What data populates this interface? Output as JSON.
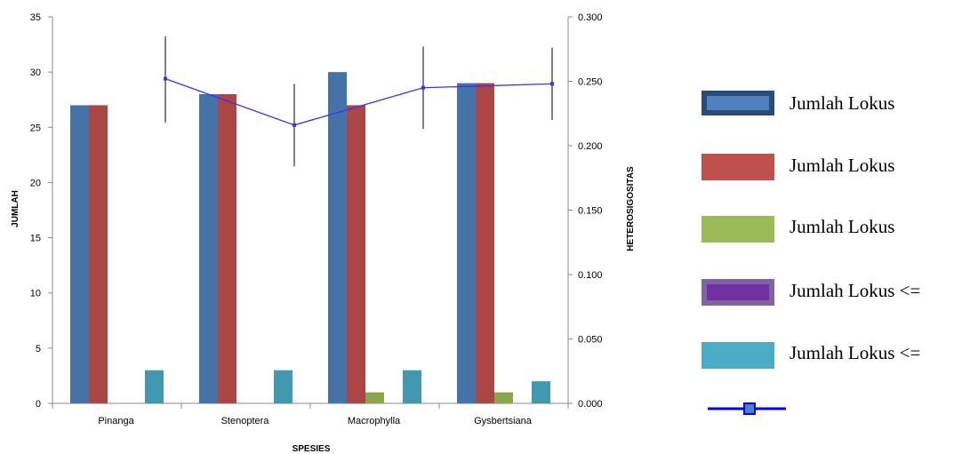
{
  "chart_data": {
    "type": "bar",
    "title": "",
    "xlabel": "SPESIES",
    "ylabel": "JUMLAH",
    "y2label": "HETEROSIGOSITAS",
    "categories": [
      "Pinanga",
      "Stenoptera",
      "Macrophylla",
      "Gysbertsiana"
    ],
    "ylim": [
      0,
      35
    ],
    "yticks": [
      "0",
      "5",
      "10",
      "15",
      "20",
      "25",
      "30",
      "35"
    ],
    "y2lim": [
      0,
      0.3
    ],
    "y2ticks": [
      "0.000",
      "0.050",
      "0.100",
      "0.150",
      "0.200",
      "0.250",
      "0.300"
    ],
    "grid": false,
    "legend_position": "right",
    "series": [
      {
        "name": "Jumlah Lokus",
        "color": "#4572A7",
        "values": [
          27,
          28,
          30,
          29
        ]
      },
      {
        "name": "Jumlah Lokus",
        "color": "#AA4643",
        "values": [
          27,
          28,
          27,
          29
        ]
      },
      {
        "name": "Jumlah Lokus",
        "color": "#89A54E",
        "values": [
          0,
          0,
          1,
          1
        ]
      },
      {
        "name": "Jumlah Lokus   <=",
        "color": "#71588F",
        "values": [
          0,
          0,
          0,
          0
        ]
      },
      {
        "name": "Jumlah Lokus   <=",
        "color": "#4198AF",
        "values": [
          3,
          3,
          3,
          2
        ]
      }
    ],
    "line_series": {
      "name": "",
      "color": "#3333ff",
      "axis": "secondary",
      "values": [
        0.252,
        0.216,
        0.245,
        0.248
      ],
      "error_low": [
        0.218,
        0.184,
        0.213,
        0.22
      ],
      "error_high": [
        0.285,
        0.248,
        0.277,
        0.276
      ]
    }
  }
}
